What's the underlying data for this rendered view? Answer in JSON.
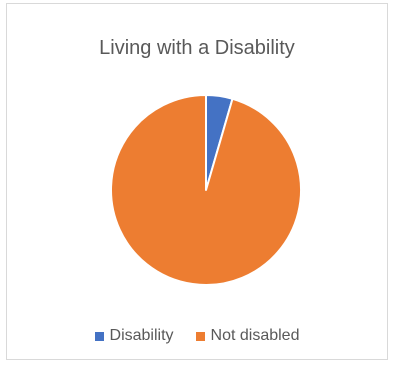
{
  "chart_data": {
    "type": "pie",
    "title": "Living with a Disability",
    "categories": [
      "Disability",
      "Not disabled"
    ],
    "values": [
      4.5,
      95.5
    ],
    "colors": [
      "#4472c4",
      "#ed7d31"
    ],
    "legend_position": "bottom"
  }
}
